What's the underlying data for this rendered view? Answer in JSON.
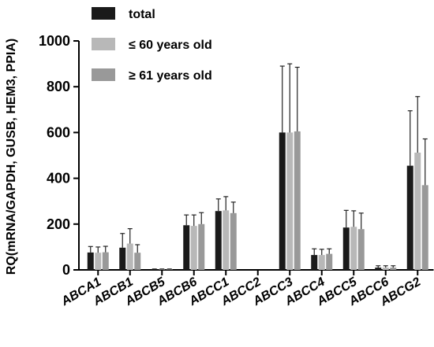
{
  "chart_data": {
    "type": "bar",
    "ylabel": "RQ(mRNA/GAPDH, GUSB, HEM3, PPIA)",
    "xlabel": "",
    "ylim": [
      0,
      1000
    ],
    "yticks": [
      0,
      200,
      400,
      600,
      800,
      1000
    ],
    "grid": false,
    "legend_position": "top-left",
    "categories": [
      "ABCA1",
      "ABCB1",
      "ABCB5",
      "ABCB6",
      "ABCC1",
      "ABCC2",
      "ABCC3",
      "ABCC4",
      "ABCC5",
      "ABCC6",
      "ABCG2"
    ],
    "series": [
      {
        "name": "total",
        "color": "#1a1a1a",
        "values": [
          76,
          97,
          2,
          195,
          257,
          0,
          600,
          65,
          185,
          10,
          455
        ],
        "errors": [
          26,
          62,
          2,
          45,
          53,
          0,
          290,
          27,
          75,
          8,
          240
        ]
      },
      {
        "name": "≤ 60 years old",
        "color": "#b8b8b8",
        "values": [
          75,
          115,
          2,
          192,
          260,
          0,
          600,
          65,
          188,
          10,
          512
        ],
        "errors": [
          25,
          65,
          2,
          48,
          60,
          0,
          300,
          25,
          70,
          8,
          245
        ]
      },
      {
        "name": "≥ 61 years old",
        "color": "#999999",
        "values": [
          77,
          75,
          2,
          200,
          248,
          0,
          605,
          70,
          178,
          10,
          370
        ],
        "errors": [
          26,
          35,
          2,
          50,
          48,
          0,
          280,
          22,
          70,
          8,
          202
        ]
      }
    ]
  }
}
